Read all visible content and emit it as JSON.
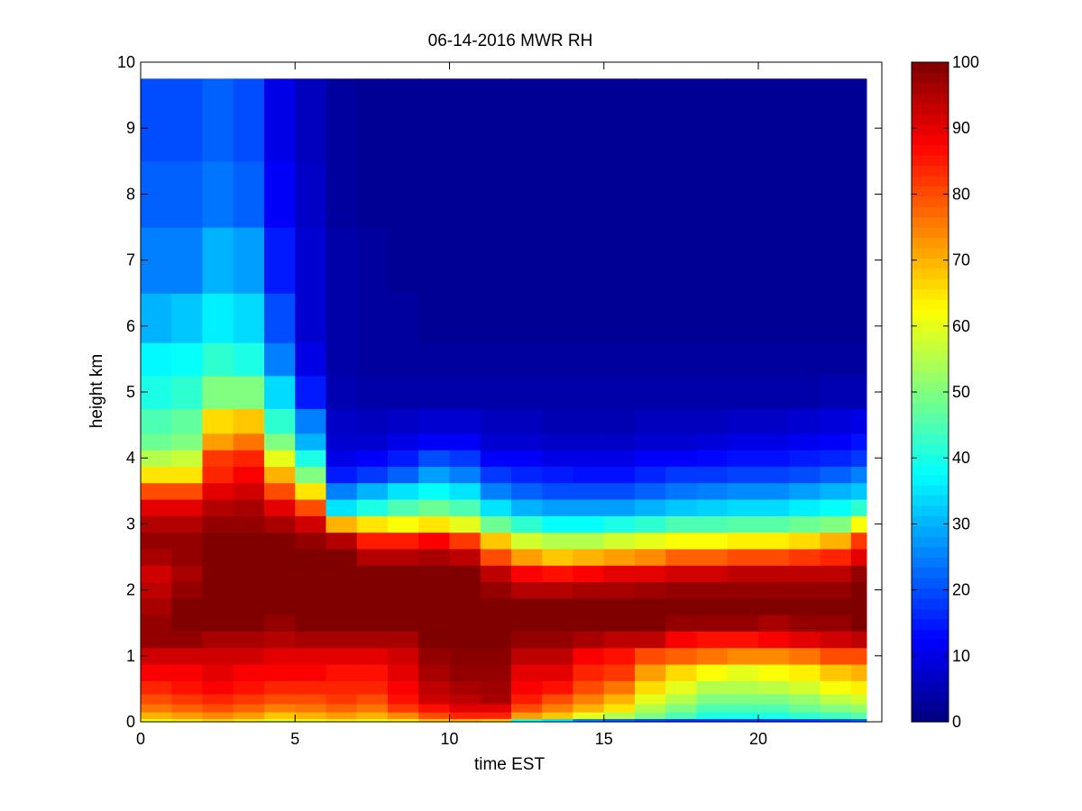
{
  "chart_data": {
    "type": "heatmap",
    "title": "06-14-2016 MWR RH",
    "xlabel": "time EST",
    "ylabel": "height km",
    "xlim": [
      0,
      24
    ],
    "ylim": [
      0,
      10
    ],
    "xticks": [
      "0",
      "5",
      "10",
      "15",
      "20"
    ],
    "yticks": [
      "0",
      "1",
      "2",
      "3",
      "4",
      "5",
      "6",
      "7",
      "8",
      "9",
      "10"
    ],
    "colorbar": {
      "colormap": "jet",
      "range": [
        0,
        100
      ],
      "ticks": [
        "0",
        "10",
        "20",
        "30",
        "40",
        "50",
        "60",
        "70",
        "80",
        "90",
        "100"
      ]
    },
    "data_extent": {
      "x": [
        0,
        23.5
      ],
      "y": [
        0,
        9.75
      ]
    },
    "time_hours": [
      0.5,
      1.5,
      2.5,
      3.5,
      4.5,
      5.5,
      6.5,
      7.5,
      8.5,
      9.5,
      10.5,
      11.5,
      12.5,
      13.5,
      14.5,
      15.5,
      16.5,
      17.5,
      18.5,
      19.5,
      20.5,
      21.5,
      22.5,
      23.5
    ],
    "height_km": [
      0,
      0.1,
      0.2,
      0.35,
      0.5,
      0.75,
      1,
      1.25,
      1.5,
      1.75,
      2,
      2.25,
      2.5,
      2.75,
      3,
      3.25,
      3.5,
      3.75,
      4,
      4.25,
      4.5,
      5,
      5.5,
      6,
      7,
      8,
      9,
      9.75
    ],
    "rh_percent": [
      [
        62,
        70,
        76,
        80,
        84,
        88,
        92,
        98,
        98,
        96,
        94,
        92,
        96,
        98,
        95,
        90,
        80,
        65,
        55,
        48,
        45,
        40,
        37,
        30,
        25,
        22,
        20,
        20
      ],
      [
        64,
        72,
        78,
        82,
        86,
        88,
        92,
        98,
        100,
        100,
        98,
        96,
        98,
        98,
        95,
        90,
        80,
        65,
        57,
        50,
        47,
        42,
        38,
        32,
        25,
        22,
        20,
        20
      ],
      [
        66,
        74,
        80,
        84,
        88,
        90,
        92,
        96,
        100,
        100,
        100,
        100,
        100,
        100,
        98,
        95,
        90,
        84,
        82,
        72,
        66,
        50,
        42,
        36,
        30,
        24,
        22,
        22
      ],
      [
        64,
        72,
        78,
        82,
        86,
        88,
        92,
        96,
        100,
        100,
        100,
        100,
        100,
        100,
        98,
        96,
        92,
        88,
        84,
        76,
        68,
        50,
        40,
        34,
        28,
        22,
        20,
        20
      ],
      [
        60,
        68,
        75,
        80,
        84,
        88,
        90,
        95,
        98,
        100,
        100,
        100,
        100,
        100,
        96,
        90,
        80,
        70,
        60,
        50,
        42,
        34,
        25,
        20,
        15,
        12,
        10,
        10
      ],
      [
        62,
        70,
        76,
        80,
        84,
        88,
        90,
        96,
        100,
        100,
        100,
        100,
        100,
        98,
        92,
        80,
        65,
        50,
        40,
        30,
        25,
        15,
        10,
        8,
        8,
        7,
        6,
        6
      ],
      [
        64,
        72,
        78,
        82,
        84,
        86,
        90,
        96,
        100,
        100,
        100,
        100,
        100,
        95,
        70,
        35,
        25,
        15,
        10,
        8,
        7,
        5,
        4,
        4,
        4,
        3,
        3,
        3
      ],
      [
        62,
        70,
        76,
        80,
        84,
        86,
        90,
        96,
        100,
        100,
        100,
        100,
        95,
        85,
        65,
        40,
        30,
        18,
        12,
        8,
        6,
        4,
        3,
        3,
        3,
        2,
        2,
        2
      ],
      [
        64,
        74,
        82,
        86,
        88,
        90,
        92,
        96,
        100,
        100,
        100,
        100,
        95,
        85,
        62,
        45,
        35,
        22,
        15,
        10,
        7,
        4,
        3,
        3,
        2,
        2,
        2,
        2
      ],
      [
        68,
        80,
        86,
        92,
        94,
        96,
        98,
        100,
        100,
        100,
        100,
        100,
        96,
        88,
        65,
        48,
        38,
        28,
        20,
        12,
        8,
        4,
        3,
        2,
        2,
        2,
        2,
        2
      ],
      [
        70,
        84,
        90,
        94,
        96,
        98,
        99,
        100,
        100,
        100,
        100,
        100,
        94,
        82,
        60,
        45,
        35,
        25,
        18,
        12,
        8,
        4,
        3,
        2,
        2,
        2,
        2,
        2
      ],
      [
        68,
        84,
        90,
        96,
        97,
        98,
        99,
        100,
        100,
        100,
        98,
        94,
        80,
        68,
        48,
        35,
        25,
        18,
        12,
        8,
        6,
        4,
        3,
        2,
        2,
        2,
        2,
        2
      ],
      [
        40,
        72,
        80,
        85,
        88,
        90,
        94,
        98,
        100,
        100,
        95,
        88,
        72,
        58,
        42,
        30,
        22,
        16,
        12,
        8,
        6,
        4,
        3,
        2,
        2,
        2,
        2,
        2
      ],
      [
        35,
        68,
        75,
        80,
        86,
        90,
        94,
        98,
        100,
        100,
        95,
        86,
        68,
        55,
        38,
        28,
        20,
        15,
        10,
        7,
        5,
        4,
        3,
        2,
        2,
        2,
        2,
        2
      ],
      [
        25,
        60,
        70,
        75,
        80,
        84,
        88,
        96,
        100,
        100,
        96,
        88,
        70,
        55,
        38,
        28,
        20,
        14,
        10,
        7,
        5,
        4,
        3,
        2,
        2,
        2,
        2,
        2
      ],
      [
        22,
        55,
        65,
        70,
        76,
        82,
        86,
        94,
        100,
        100,
        96,
        90,
        72,
        58,
        40,
        28,
        20,
        14,
        10,
        7,
        5,
        4,
        3,
        2,
        2,
        2,
        2,
        2
      ],
      [
        20,
        50,
        55,
        60,
        66,
        72,
        80,
        94,
        100,
        100,
        97,
        90,
        74,
        60,
        42,
        30,
        22,
        16,
        12,
        8,
        6,
        4,
        3,
        2,
        2,
        2,
        2,
        2
      ],
      [
        18,
        45,
        50,
        55,
        60,
        66,
        78,
        88,
        98,
        100,
        98,
        92,
        78,
        62,
        45,
        32,
        24,
        18,
        12,
        8,
        6,
        4,
        3,
        2,
        2,
        2,
        2,
        2
      ],
      [
        18,
        40,
        45,
        50,
        55,
        62,
        76,
        86,
        98,
        100,
        98,
        92,
        78,
        62,
        45,
        33,
        25,
        18,
        13,
        9,
        6,
        4,
        3,
        2,
        2,
        2,
        2,
        2
      ],
      [
        18,
        40,
        45,
        50,
        55,
        60,
        74,
        86,
        98,
        100,
        98,
        94,
        80,
        64,
        46,
        34,
        26,
        19,
        14,
        10,
        7,
        4,
        3,
        2,
        2,
        2,
        2,
        2
      ],
      [
        18,
        40,
        45,
        50,
        56,
        62,
        74,
        88,
        96,
        100,
        98,
        94,
        80,
        64,
        46,
        34,
        26,
        19,
        14,
        10,
        7,
        4,
        3,
        2,
        2,
        2,
        2,
        2
      ],
      [
        18,
        42,
        48,
        52,
        58,
        64,
        76,
        90,
        98,
        100,
        98,
        94,
        82,
        66,
        48,
        36,
        28,
        20,
        15,
        11,
        8,
        4,
        3,
        2,
        2,
        2,
        2,
        2
      ],
      [
        20,
        44,
        50,
        56,
        62,
        68,
        80,
        92,
        98,
        100,
        98,
        94,
        84,
        70,
        50,
        38,
        30,
        22,
        16,
        12,
        9,
        5,
        3,
        2,
        2,
        2,
        2,
        2
      ],
      [
        22,
        46,
        52,
        58,
        64,
        70,
        80,
        94,
        100,
        100,
        100,
        98,
        90,
        82,
        62,
        42,
        32,
        25,
        18,
        14,
        10,
        5,
        3,
        2,
        2,
        2,
        2,
        2
      ]
    ]
  }
}
